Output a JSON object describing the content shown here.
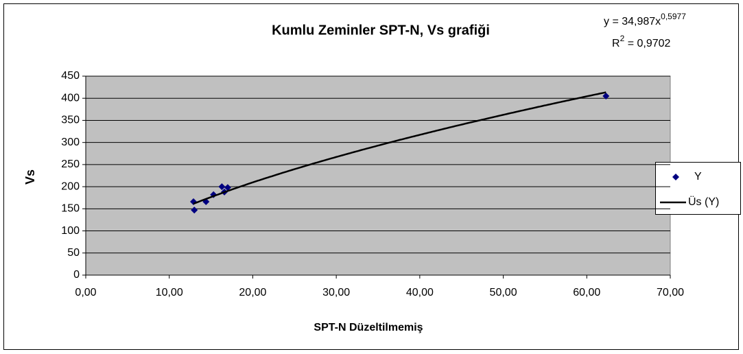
{
  "chart_data": {
    "type": "scatter",
    "title": "Kumlu Zeminler SPT-N, Vs grafiği",
    "x_label": "SPT-N Düzeltilmemiş",
    "y_label": "Vs",
    "series": [
      {
        "name": "Y",
        "color": "#000080",
        "x": [
          12.9,
          13.0,
          14.4,
          15.3,
          16.3,
          16.6,
          17.0,
          62.3
        ],
        "values": [
          166,
          147,
          166,
          182,
          200,
          188,
          198,
          405
        ]
      }
    ],
    "trendline": {
      "name": "Üs (Y)",
      "color": "#000000",
      "prefix": "y = ",
      "variable": "x",
      "coefficient": {
        "value": 34.987,
        "label": "34,987"
      },
      "exponent": {
        "value": 0.5977,
        "label": "0,5977"
      },
      "r_symbol": "R",
      "r_power": "2",
      "r_equals": " = ",
      "r2": {
        "value": 0.9702,
        "label": "0,9702"
      }
    },
    "xlim": [
      0,
      70
    ],
    "xticks": [
      {
        "value": 0,
        "label": "0,00"
      },
      {
        "value": 10,
        "label": "10,00"
      },
      {
        "value": 20,
        "label": "20,00"
      },
      {
        "value": 30,
        "label": "30,00"
      },
      {
        "value": 40,
        "label": "40,00"
      },
      {
        "value": 50,
        "label": "50,00"
      },
      {
        "value": 60,
        "label": "60,00"
      },
      {
        "value": 70,
        "label": "70,00"
      }
    ],
    "ylim": [
      0,
      450
    ],
    "yticks": [
      0,
      50,
      100,
      150,
      200,
      250,
      300,
      350,
      400,
      450
    ],
    "grid": true,
    "legend": "right"
  }
}
